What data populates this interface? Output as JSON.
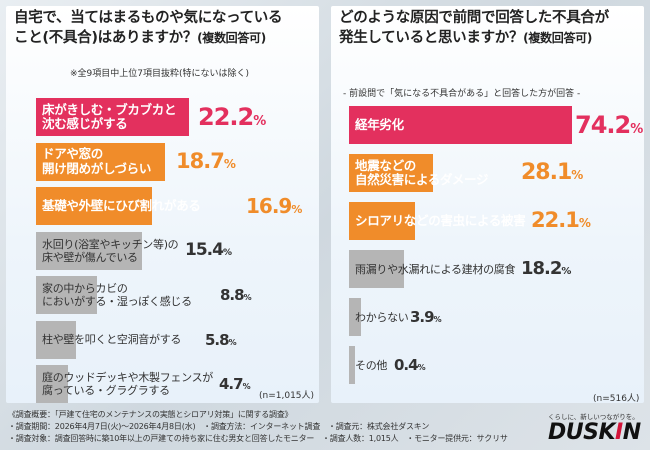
{
  "left": {
    "title_line1": "自宅で、当てはまるものや気になっている",
    "title_line2": "こと(不具合)はありますか？",
    "title_suffix": "(複数回答可)",
    "note": "※全9項目中上位7項目抜粋(特にないは除く)",
    "sample": "(n=1,015人)"
  },
  "right": {
    "title_line1": "どのような原因で前問で回答した不具合が",
    "title_line2": "発生していると思いますか？",
    "title_suffix": "(複数回答可)",
    "note": "- 前設問で「気になる不具合がある」と回答した方が回答 -",
    "sample": "(n=516人)"
  },
  "colors": {
    "top": "#e3305e",
    "mid": "#f08c2a",
    "low": "#b5b5b5",
    "lowtext": "#333333"
  },
  "chart_data": [
    {
      "type": "bar",
      "orientation": "horizontal",
      "title": "自宅で、当てはまるものや気になっていること(不具合)はありますか？(複数回答可)",
      "unit": "%",
      "categories": [
        "床がきしむ・ブカブカと\n沈む感じがする",
        "ドアや窓の\n開け閉めがしづらい",
        "基礎や外壁にひび割れがある",
        "水回り(浴室やキッチン等)の\n床や壁が傷んでいる",
        "家の中からカビの\nにおいがする・湿っぽく感じる",
        "柱や壁を叩くと空洞音がする",
        "庭のウッドデッキや木製フェンスが\n腐っている・グラグラする"
      ],
      "values": [
        22.2,
        18.7,
        16.9,
        15.4,
        8.8,
        5.8,
        4.7
      ],
      "value_labels": [
        "22.2%",
        "18.7%",
        "16.9%",
        "15.4%",
        "8.8%",
        "5.8%",
        "4.7%"
      ],
      "xlim": [
        0,
        22.2
      ]
    },
    {
      "type": "bar",
      "orientation": "horizontal",
      "title": "どのような原因で前問で回答した不具合が発生していると思いますか？(複数回答可)",
      "unit": "%",
      "categories": [
        "経年劣化",
        "地震などの\n自然災害によるダメージ",
        "シロアリなどの害虫による被害",
        "雨漏りや水漏れによる建材の腐食",
        "わからない",
        "その他"
      ],
      "values": [
        74.2,
        28.1,
        22.1,
        18.2,
        3.9,
        0.4
      ],
      "value_labels": [
        "74.2%",
        "28.1%",
        "22.1%",
        "18.2%",
        "3.9%",
        "0.4%"
      ],
      "xlim": [
        0,
        74.2
      ]
    }
  ],
  "footer": {
    "line1": "《調査概要：「戸建て住宅のメンテナンスの実態とシロアリ対策」に関する調査》",
    "line2": "・調査期間：2026年4月7日(火)～2026年4月8日(水)　・調査方法：インターネット調査　・調査元：株式会社ダスキン",
    "line3": "・調査対象：調査回答時に築10年以上の戸建ての持ち家に住む男女と回答したモニター　・調査人数：1,015人　・モニター提供元：サクリサ"
  },
  "brand": {
    "tagline": "くらしに、新しいつながりを。",
    "logo_main": "DUSK",
    "logo_accent": "I",
    "logo_end": "N"
  }
}
